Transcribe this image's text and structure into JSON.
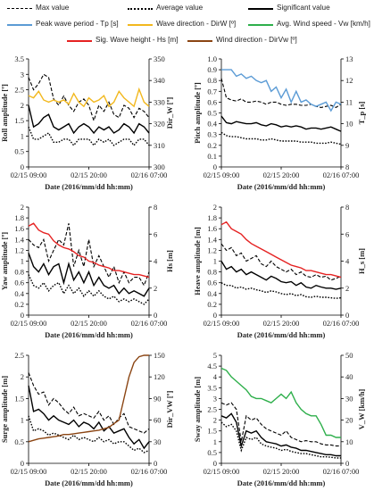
{
  "legend": {
    "max": "Max value",
    "avg": "Average value",
    "sig": "Significant value",
    "tp": "Peak wave period - Tp [s]",
    "dirw": "Wave direction - DirW [º]",
    "vw": "Avg. Wind speed - Vw [km/h]",
    "hs": "Sig. Wave height - Hs [m]",
    "dirvw": "Wind direction - DirVw [º]"
  },
  "colors": {
    "tp": "#5B9BD5",
    "dirw": "#F2B81E",
    "vw": "#2EAF4B",
    "hs": "#E52222",
    "dirvw": "#8B4513"
  },
  "xaxis": {
    "label": "Date (2016/mm/dd hh:mm)",
    "ticks": [
      "02/15 09:00",
      "02/15 20:00",
      "02/16 07:00"
    ]
  },
  "chart_data": [
    {
      "type": "line",
      "ylabel": "Roll amplitude [º]",
      "y2label": "Dir_W [º]",
      "ylim": [
        0,
        3.5
      ],
      "yticks": [
        "0",
        "0.5",
        "1",
        "1.5",
        "2",
        "2.5",
        "3",
        "3.5"
      ],
      "y2lim": [
        300,
        350
      ],
      "y2ticks": [
        "300",
        "310",
        "320",
        "330",
        "340",
        "350"
      ],
      "series": [
        {
          "name": "Max value",
          "values": [
            2.9,
            2.5,
            2.7,
            3.0,
            2.9,
            2.2,
            2.0,
            2.3,
            2.0,
            1.8,
            2.1,
            2.2,
            2.0,
            1.5,
            2.0,
            1.8,
            2.1,
            1.7,
            1.6,
            2.0,
            1.9,
            1.6,
            1.9,
            1.8,
            1.6
          ]
        },
        {
          "name": "Significant value",
          "values": [
            2.0,
            1.3,
            1.4,
            1.6,
            1.7,
            1.3,
            1.2,
            1.3,
            1.4,
            1.1,
            1.3,
            1.4,
            1.3,
            1.1,
            1.3,
            1.2,
            1.3,
            1.1,
            1.2,
            1.4,
            1.3,
            1.1,
            1.4,
            1.3,
            1.1
          ]
        },
        {
          "name": "Average value",
          "values": [
            1.3,
            0.9,
            0.9,
            1.0,
            1.1,
            0.8,
            0.8,
            0.9,
            0.9,
            0.7,
            0.9,
            0.9,
            0.9,
            0.7,
            0.9,
            0.8,
            0.9,
            0.7,
            0.8,
            0.9,
            0.9,
            0.7,
            0.9,
            0.9,
            0.7
          ]
        },
        {
          "name": "Wave direction - DirW [º]",
          "axis": "right",
          "values": [
            333,
            332,
            335,
            331,
            330,
            331,
            330,
            331,
            329,
            334,
            330,
            328,
            332,
            330,
            331,
            333,
            328,
            330,
            335,
            332,
            330,
            328,
            336,
            330,
            328
          ]
        }
      ]
    },
    {
      "type": "line",
      "ylabel": "Pitch amplitude [º]",
      "y2label": "T_p [s]",
      "ylim": [
        0,
        1
      ],
      "yticks": [
        "0",
        "0.1",
        "0.2",
        "0.3",
        "0.4",
        "0.5",
        "0.6",
        "0.7",
        "0.8",
        "0.9",
        "1.0"
      ],
      "y2lim": [
        8,
        13
      ],
      "y2ticks": [
        "8",
        "9",
        "10",
        "11",
        "12",
        "13"
      ],
      "series": [
        {
          "name": "Max value",
          "values": [
            0.82,
            0.64,
            0.62,
            0.61,
            0.63,
            0.6,
            0.6,
            0.61,
            0.6,
            0.58,
            0.6,
            0.6,
            0.58,
            0.57,
            0.58,
            0.58,
            0.57,
            0.57,
            0.58,
            0.56,
            0.55,
            0.56,
            0.57,
            0.55,
            0.58
          ]
        },
        {
          "name": "Significant value",
          "values": [
            0.47,
            0.41,
            0.4,
            0.42,
            0.41,
            0.4,
            0.4,
            0.41,
            0.39,
            0.38,
            0.4,
            0.39,
            0.37,
            0.38,
            0.37,
            0.38,
            0.37,
            0.35,
            0.36,
            0.36,
            0.35,
            0.36,
            0.37,
            0.35,
            0.33
          ]
        },
        {
          "name": "Average value",
          "values": [
            0.32,
            0.29,
            0.28,
            0.28,
            0.27,
            0.26,
            0.26,
            0.26,
            0.25,
            0.25,
            0.26,
            0.25,
            0.24,
            0.24,
            0.24,
            0.24,
            0.23,
            0.23,
            0.23,
            0.22,
            0.22,
            0.22,
            0.23,
            0.22,
            0.21
          ]
        },
        {
          "name": "Peak wave period - Tp [s]",
          "axis": "right",
          "values": [
            12.5,
            12.5,
            12.5,
            12.2,
            12.3,
            12.1,
            12.2,
            12.0,
            11.9,
            12.0,
            11.5,
            11.7,
            11.2,
            11.6,
            11.0,
            11.5,
            11.0,
            11.1,
            10.9,
            10.8,
            10.9,
            11.0,
            10.6,
            11.0,
            10.9
          ]
        }
      ]
    },
    {
      "type": "line",
      "ylabel": "Yaw amplitude [º]",
      "y2label": "Hs [m]",
      "ylim": [
        0,
        2
      ],
      "yticks": [
        "0",
        "0.2",
        "0.4",
        "0.6",
        "0.8",
        "1",
        "1.2",
        "1.4",
        "1.6",
        "1.8",
        "2"
      ],
      "y2lim": [
        0,
        8
      ],
      "y2ticks": [
        "0",
        "2",
        "4",
        "6",
        "8"
      ],
      "series": [
        {
          "name": "Max value",
          "values": [
            1.4,
            1.3,
            1.25,
            1.4,
            1.0,
            1.2,
            1.4,
            1.3,
            1.7,
            0.9,
            1.2,
            0.9,
            1.4,
            0.9,
            1.1,
            0.9,
            0.7,
            0.9,
            0.6,
            0.8,
            0.6,
            0.7,
            0.7,
            0.55,
            0.8
          ]
        },
        {
          "name": "Significant value",
          "values": [
            1.15,
            0.9,
            0.8,
            0.95,
            0.75,
            0.9,
            0.95,
            0.6,
            0.95,
            0.65,
            0.8,
            0.6,
            0.8,
            0.55,
            0.7,
            0.55,
            0.5,
            0.55,
            0.4,
            0.5,
            0.4,
            0.45,
            0.4,
            0.35,
            0.5
          ]
        },
        {
          "name": "Average value",
          "values": [
            0.75,
            0.55,
            0.5,
            0.6,
            0.45,
            0.55,
            0.6,
            0.4,
            0.55,
            0.4,
            0.5,
            0.35,
            0.45,
            0.35,
            0.45,
            0.35,
            0.3,
            0.35,
            0.25,
            0.3,
            0.25,
            0.3,
            0.25,
            0.2,
            0.3
          ]
        },
        {
          "name": "Sig. Wave height - Hs [m]",
          "axis": "right",
          "values": [
            6.6,
            6.8,
            6.3,
            6.1,
            6.0,
            5.5,
            5.2,
            5.0,
            4.9,
            4.7,
            4.4,
            4.3,
            4.0,
            3.9,
            3.7,
            3.6,
            3.5,
            3.3,
            3.3,
            3.2,
            3.1,
            3.0,
            3.0,
            2.9,
            2.8
          ]
        }
      ]
    },
    {
      "type": "line",
      "ylabel": "Heave amplitude [m]",
      "y2label": "H_s [m]",
      "ylim": [
        0,
        2
      ],
      "yticks": [
        "0",
        "0.2",
        "0.4",
        "0.6",
        "0.8",
        "1",
        "1.2",
        "1.4",
        "1.6",
        "1.8",
        "2"
      ],
      "y2lim": [
        0,
        8
      ],
      "y2ticks": [
        "0",
        "2",
        "4",
        "6",
        "8"
      ],
      "series": [
        {
          "name": "Max value",
          "values": [
            1.32,
            1.2,
            1.25,
            1.1,
            1.15,
            1.0,
            1.05,
            1.1,
            0.95,
            0.9,
            1.0,
            0.9,
            0.85,
            0.8,
            0.85,
            0.75,
            0.8,
            0.72,
            0.7,
            0.75,
            0.7,
            0.72,
            0.65,
            0.68,
            0.72
          ]
        },
        {
          "name": "Significant value",
          "values": [
            1.0,
            0.85,
            0.9,
            0.8,
            0.85,
            0.75,
            0.8,
            0.75,
            0.7,
            0.65,
            0.72,
            0.68,
            0.62,
            0.6,
            0.62,
            0.55,
            0.6,
            0.52,
            0.5,
            0.55,
            0.52,
            0.5,
            0.5,
            0.48,
            0.5
          ]
        },
        {
          "name": "Average value",
          "values": [
            0.6,
            0.55,
            0.55,
            0.5,
            0.52,
            0.48,
            0.5,
            0.47,
            0.45,
            0.42,
            0.45,
            0.43,
            0.4,
            0.38,
            0.4,
            0.36,
            0.38,
            0.34,
            0.33,
            0.35,
            0.33,
            0.33,
            0.32,
            0.31,
            0.32
          ]
        },
        {
          "name": "Sig. Wave height - Hs [m]",
          "axis": "right",
          "values": [
            6.7,
            6.9,
            6.4,
            6.2,
            6.0,
            5.6,
            5.3,
            5.1,
            4.9,
            4.7,
            4.5,
            4.3,
            4.1,
            3.9,
            3.7,
            3.6,
            3.5,
            3.3,
            3.3,
            3.2,
            3.1,
            3.0,
            3.0,
            2.9,
            2.8
          ]
        }
      ]
    },
    {
      "type": "line",
      "ylabel": "Surge amplitude [m]",
      "y2label": "Dir_VW [º]",
      "ylim": [
        0,
        2.5
      ],
      "yticks": [
        "0",
        "0.5",
        "1",
        "1.5",
        "2",
        "2.5"
      ],
      "y2lim": [
        0,
        150
      ],
      "y2ticks": [
        "0",
        "30",
        "60",
        "90",
        "120",
        "150"
      ],
      "series": [
        {
          "name": "Max value",
          "values": [
            2.1,
            1.8,
            1.6,
            1.65,
            1.35,
            1.5,
            1.4,
            1.25,
            1.15,
            1.3,
            1.1,
            1.15,
            1.1,
            1.05,
            1.2,
            1.0,
            1.1,
            0.9,
            1.05,
            1.15,
            0.85,
            0.8,
            0.75,
            0.7,
            0.8
          ]
        },
        {
          "name": "Significant value",
          "values": [
            1.8,
            1.2,
            1.25,
            1.15,
            1.0,
            1.1,
            1.0,
            0.95,
            0.9,
            1.0,
            0.85,
            0.95,
            0.9,
            0.8,
            0.95,
            0.75,
            0.85,
            0.7,
            0.75,
            0.8,
            0.6,
            0.45,
            0.55,
            0.35,
            0.5
          ]
        },
        {
          "name": "Average value",
          "values": [
            1.1,
            0.75,
            0.8,
            0.75,
            0.65,
            0.7,
            0.65,
            0.6,
            0.55,
            0.65,
            0.55,
            0.6,
            0.55,
            0.5,
            0.6,
            0.5,
            0.55,
            0.45,
            0.5,
            0.5,
            0.4,
            0.3,
            0.35,
            0.25,
            0.3
          ]
        },
        {
          "name": "Wind direction - DirVw [º]",
          "axis": "right",
          "values": [
            30,
            32,
            34,
            35,
            36,
            37,
            38,
            40,
            40,
            41,
            42,
            43,
            44,
            45,
            46,
            48,
            50,
            55,
            60,
            90,
            120,
            140,
            148,
            150,
            150
          ]
        }
      ]
    },
    {
      "type": "line",
      "ylabel": "Sway amplitude [m]",
      "y2label": "V_W [km/h]",
      "ylim": [
        0,
        5
      ],
      "yticks": [
        "0",
        "0.5",
        "1",
        "1.5",
        "2",
        "2.5",
        "3",
        "3.5",
        "4",
        "4.5",
        "5"
      ],
      "y2lim": [
        0,
        50
      ],
      "y2ticks": [
        "0",
        "10",
        "20",
        "30",
        "40",
        "50"
      ],
      "series": [
        {
          "name": "Max value",
          "values": [
            2.8,
            2.7,
            2.8,
            2.5,
            1.0,
            2.2,
            2.0,
            2.1,
            1.8,
            1.6,
            1.5,
            1.4,
            1.3,
            1.5,
            1.2,
            1.1,
            1.0,
            1.05,
            1.0,
            1.0,
            0.9,
            0.85,
            0.85,
            0.8,
            0.8
          ]
        },
        {
          "name": "Significant value",
          "values": [
            2.2,
            2.1,
            2.3,
            1.9,
            0.8,
            1.5,
            1.4,
            1.5,
            1.2,
            1.0,
            0.95,
            0.9,
            0.8,
            0.85,
            0.75,
            0.7,
            0.6,
            0.6,
            0.55,
            0.5,
            0.45,
            0.4,
            0.4,
            0.35,
            0.35
          ]
        },
        {
          "name": "Average value",
          "values": [
            1.9,
            1.7,
            1.8,
            1.5,
            0.6,
            1.2,
            1.1,
            1.2,
            0.9,
            0.8,
            0.75,
            0.7,
            0.6,
            0.65,
            0.55,
            0.5,
            0.45,
            0.45,
            0.4,
            0.35,
            0.3,
            0.3,
            0.28,
            0.25,
            0.25
          ]
        },
        {
          "name": "Avg. Wind speed - Vw [km/h]",
          "axis": "right",
          "values": [
            44,
            43,
            40,
            38,
            36,
            34,
            31,
            30,
            30,
            29,
            28,
            30,
            32,
            30,
            33,
            28,
            25,
            23,
            22,
            22,
            18,
            13,
            13,
            12,
            12
          ]
        }
      ]
    }
  ]
}
